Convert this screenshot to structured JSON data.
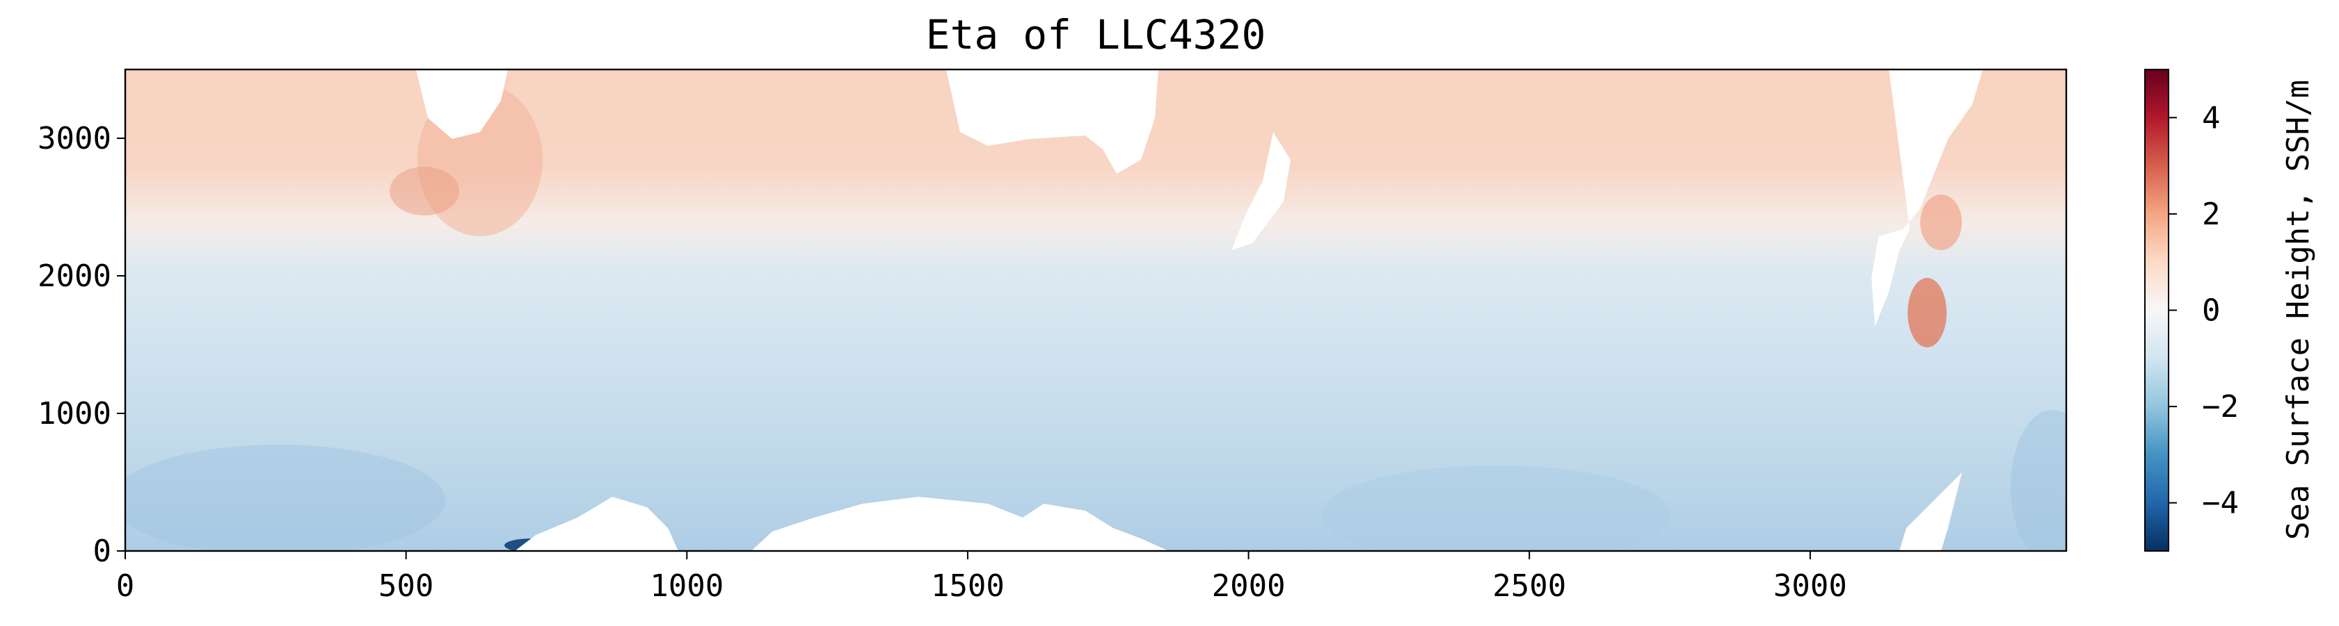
{
  "chart_data": {
    "type": "heatmap",
    "title": "Eta of LLC4320",
    "xlabel": "",
    "ylabel": "",
    "xlim": [
      0,
      3456
    ],
    "ylim": [
      0,
      3500
    ],
    "x_ticks": [
      0,
      500,
      1000,
      1500,
      2000,
      2500,
      3000
    ],
    "x_tick_labels": [
      "0",
      "500",
      "1000",
      "1500",
      "2000",
      "2500",
      "3000"
    ],
    "y_ticks": [
      0,
      1000,
      2000,
      3000
    ],
    "y_tick_labels": [
      "0",
      "1000",
      "2000",
      "3000"
    ],
    "colorbar": {
      "label": "Sea Surface Height, SSH/m",
      "range": [
        -5,
        5
      ],
      "ticks": [
        -4,
        -2,
        0,
        2,
        4
      ],
      "tick_labels": [
        "−4",
        "−2",
        "0",
        "2",
        "4"
      ],
      "colormap": "RdBu_r",
      "colors": [
        "#053061",
        "#2166ac",
        "#4393c3",
        "#92c5de",
        "#d1e5f0",
        "#f7f7f7",
        "#fddbc7",
        "#f4a582",
        "#d6604d",
        "#b2182b",
        "#67001f"
      ]
    },
    "field_description": "SSH field: positive (light red, ~0.5 to 1.5 m) in upper half of y-range (y > ~2200), near zero around y ~2000, negative (light blue, ~-0.5 to -2 m) in lower half; white areas are land (no data)",
    "land_color": "#ffffff"
  }
}
